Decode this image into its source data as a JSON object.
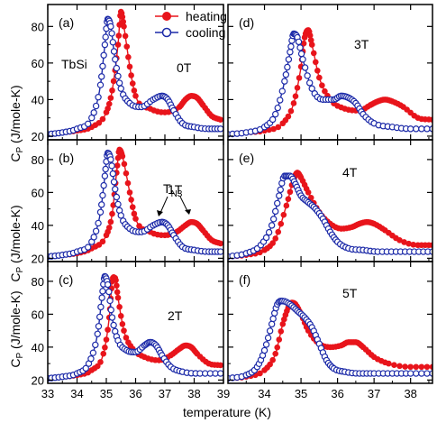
{
  "figure": {
    "xlabel": "temperature (K)",
    "ylabel_main": "C",
    "ylabel_sub": "P",
    "ylabel_rest": " (J/mole-K)",
    "left_xticks": [
      "33",
      "34",
      "35",
      "36",
      "37",
      "38",
      "39"
    ],
    "right_xticks": [
      "34",
      "35",
      "36",
      "37",
      "38"
    ],
    "yticks": [
      "20",
      "40",
      "60",
      "80"
    ],
    "legend": {
      "heating": "heating",
      "cooling": "cooling"
    },
    "sample_label": "TbSi",
    "annotation_main": "T",
    "annotation_sub": "N3"
  },
  "colors": {
    "heating": "#e8141b",
    "cooling": "#1c2aa8",
    "axis": "#000000"
  },
  "chart_data": [
    {
      "type": "line",
      "panel": "a",
      "label": "(a)",
      "field": "0T",
      "xlim": [
        33,
        39
      ],
      "ylim": [
        18,
        92
      ],
      "series": [
        {
          "name": "heating",
          "marker": "filled-circle",
          "x": [
            33.0,
            33.5,
            34.0,
            34.5,
            35.0,
            35.2,
            35.4,
            35.5,
            35.6,
            35.8,
            36.0,
            36.5,
            37.0,
            37.5,
            37.7,
            37.9,
            38.1,
            38.3,
            38.6,
            38.9
          ],
          "y": [
            21,
            22,
            23,
            25,
            33,
            45,
            70,
            88,
            80,
            58,
            42,
            35,
            33,
            36,
            40,
            42,
            41,
            37,
            31,
            29
          ]
        },
        {
          "name": "cooling",
          "marker": "open-circle",
          "x": [
            33.0,
            33.5,
            34.0,
            34.5,
            34.8,
            34.95,
            35.05,
            35.15,
            35.3,
            35.5,
            35.8,
            36.2,
            36.6,
            36.9,
            37.1,
            37.3,
            37.6,
            38.0,
            38.5,
            38.9
          ],
          "y": [
            21,
            22,
            24,
            30,
            48,
            70,
            84,
            80,
            62,
            46,
            38,
            36,
            40,
            42,
            40,
            34,
            27,
            25,
            24,
            24
          ]
        }
      ]
    },
    {
      "type": "line",
      "panel": "b",
      "label": "(b)",
      "field": "1T",
      "xlim": [
        33,
        39
      ],
      "ylim": [
        18,
        92
      ],
      "series": [
        {
          "name": "heating",
          "marker": "filled-circle",
          "x": [
            33.0,
            33.5,
            34.0,
            34.5,
            35.0,
            35.2,
            35.35,
            35.45,
            35.55,
            35.8,
            36.0,
            36.5,
            37.0,
            37.4,
            37.7,
            37.9,
            38.1,
            38.3,
            38.6,
            38.9
          ],
          "y": [
            21,
            22,
            23,
            26,
            34,
            47,
            72,
            86,
            82,
            60,
            44,
            36,
            34,
            36,
            40,
            42,
            41,
            37,
            31,
            29
          ]
        },
        {
          "name": "cooling",
          "marker": "open-circle",
          "x": [
            33.0,
            33.5,
            34.0,
            34.5,
            34.8,
            34.95,
            35.05,
            35.15,
            35.3,
            35.5,
            35.8,
            36.2,
            36.6,
            36.9,
            37.1,
            37.3,
            37.6,
            38.0,
            38.5,
            38.9
          ],
          "y": [
            21,
            22,
            24,
            30,
            48,
            70,
            84,
            80,
            62,
            46,
            38,
            36,
            40,
            42,
            40,
            34,
            27,
            25,
            24,
            24
          ]
        }
      ]
    },
    {
      "type": "line",
      "panel": "c",
      "label": "(c)",
      "field": "2T",
      "xlim": [
        33,
        39
      ],
      "ylim": [
        18,
        92
      ],
      "series": [
        {
          "name": "heating",
          "marker": "filled-circle",
          "x": [
            33.0,
            33.5,
            34.0,
            34.5,
            34.9,
            35.1,
            35.2,
            35.3,
            35.4,
            35.6,
            35.9,
            36.3,
            36.8,
            37.2,
            37.5,
            37.7,
            37.9,
            38.1,
            38.5,
            38.9
          ],
          "y": [
            21,
            22,
            23,
            26,
            36,
            58,
            80,
            82,
            70,
            50,
            39,
            34,
            32,
            35,
            39,
            41,
            40,
            36,
            30,
            29
          ]
        },
        {
          "name": "cooling",
          "marker": "open-circle",
          "x": [
            33.0,
            33.5,
            34.0,
            34.4,
            34.7,
            34.85,
            34.95,
            35.05,
            35.2,
            35.4,
            35.7,
            36.0,
            36.3,
            36.5,
            36.7,
            36.9,
            37.2,
            37.6,
            38.2,
            38.9
          ],
          "y": [
            21,
            22,
            24,
            30,
            48,
            70,
            83,
            78,
            58,
            44,
            38,
            37,
            41,
            43,
            41,
            35,
            28,
            25,
            24,
            24
          ]
        }
      ]
    },
    {
      "type": "line",
      "panel": "d",
      "label": "(d)",
      "field": "3T",
      "xlim": [
        33,
        38.6
      ],
      "ylim": [
        18,
        92
      ],
      "series": [
        {
          "name": "heating",
          "marker": "filled-circle",
          "x": [
            33.0,
            33.5,
            34.0,
            34.5,
            34.8,
            35.0,
            35.1,
            35.2,
            35.3,
            35.5,
            35.8,
            36.2,
            36.6,
            36.9,
            37.1,
            37.3,
            37.5,
            37.8,
            38.2,
            38.6
          ],
          "y": [
            21,
            22,
            23,
            27,
            38,
            58,
            74,
            78,
            70,
            52,
            40,
            35,
            34,
            37,
            39,
            40,
            39,
            36,
            30,
            29
          ]
        },
        {
          "name": "cooling",
          "marker": "open-circle",
          "x": [
            33.0,
            33.5,
            34.0,
            34.3,
            34.55,
            34.7,
            34.8,
            34.9,
            35.05,
            35.3,
            35.6,
            35.9,
            36.1,
            36.3,
            36.5,
            36.7,
            37.0,
            37.5,
            38.0,
            38.6
          ],
          "y": [
            21,
            22,
            25,
            32,
            50,
            66,
            76,
            74,
            62,
            46,
            40,
            40,
            42,
            41,
            38,
            32,
            27,
            25,
            24,
            24
          ]
        }
      ]
    },
    {
      "type": "line",
      "panel": "e",
      "label": "(e)",
      "field": "4T",
      "xlim": [
        33,
        38.6
      ],
      "ylim": [
        18,
        92
      ],
      "series": [
        {
          "name": "heating",
          "marker": "filled-circle",
          "x": [
            33.0,
            33.5,
            34.0,
            34.3,
            34.6,
            34.8,
            34.9,
            35.0,
            35.2,
            35.5,
            35.8,
            36.1,
            36.4,
            36.6,
            36.8,
            37.0,
            37.3,
            37.7,
            38.2,
            38.6
          ],
          "y": [
            21,
            22,
            25,
            32,
            52,
            68,
            72,
            69,
            60,
            48,
            41,
            38,
            39,
            41,
            42,
            41,
            37,
            31,
            28,
            28
          ]
        },
        {
          "name": "cooling",
          "marker": "open-circle",
          "x": [
            33.0,
            33.5,
            33.9,
            34.2,
            34.4,
            34.55,
            34.7,
            34.85,
            35.0,
            35.2,
            35.4,
            35.6,
            35.8,
            36.0,
            36.3,
            36.7,
            37.1,
            37.6,
            38.1,
            38.6
          ],
          "y": [
            21,
            23,
            28,
            40,
            58,
            70,
            70,
            65,
            58,
            54,
            50,
            44,
            36,
            30,
            26,
            25,
            24,
            24,
            24,
            24
          ]
        }
      ]
    },
    {
      "type": "line",
      "panel": "f",
      "label": "(f)",
      "field": "5T",
      "xlim": [
        33,
        38.6
      ],
      "ylim": [
        18,
        92
      ],
      "series": [
        {
          "name": "heating",
          "marker": "filled-circle",
          "x": [
            33.0,
            33.5,
            34.0,
            34.3,
            34.5,
            34.65,
            34.75,
            34.85,
            35.0,
            35.2,
            35.5,
            35.8,
            36.1,
            36.3,
            36.5,
            36.7,
            37.0,
            37.4,
            38.0,
            38.6
          ],
          "y": [
            21,
            22,
            26,
            36,
            54,
            64,
            67,
            66,
            60,
            50,
            42,
            40,
            41,
            43,
            43,
            40,
            34,
            30,
            28,
            28
          ]
        },
        {
          "name": "cooling",
          "marker": "open-circle",
          "x": [
            33.0,
            33.5,
            33.8,
            34.0,
            34.2,
            34.35,
            34.5,
            34.7,
            34.9,
            35.1,
            35.3,
            35.5,
            35.7,
            35.9,
            36.2,
            36.6,
            37.0,
            37.5,
            38.0,
            38.6
          ],
          "y": [
            21,
            23,
            28,
            38,
            54,
            66,
            68,
            66,
            62,
            58,
            52,
            42,
            32,
            27,
            25,
            24,
            24,
            24,
            24,
            24
          ]
        }
      ]
    }
  ]
}
